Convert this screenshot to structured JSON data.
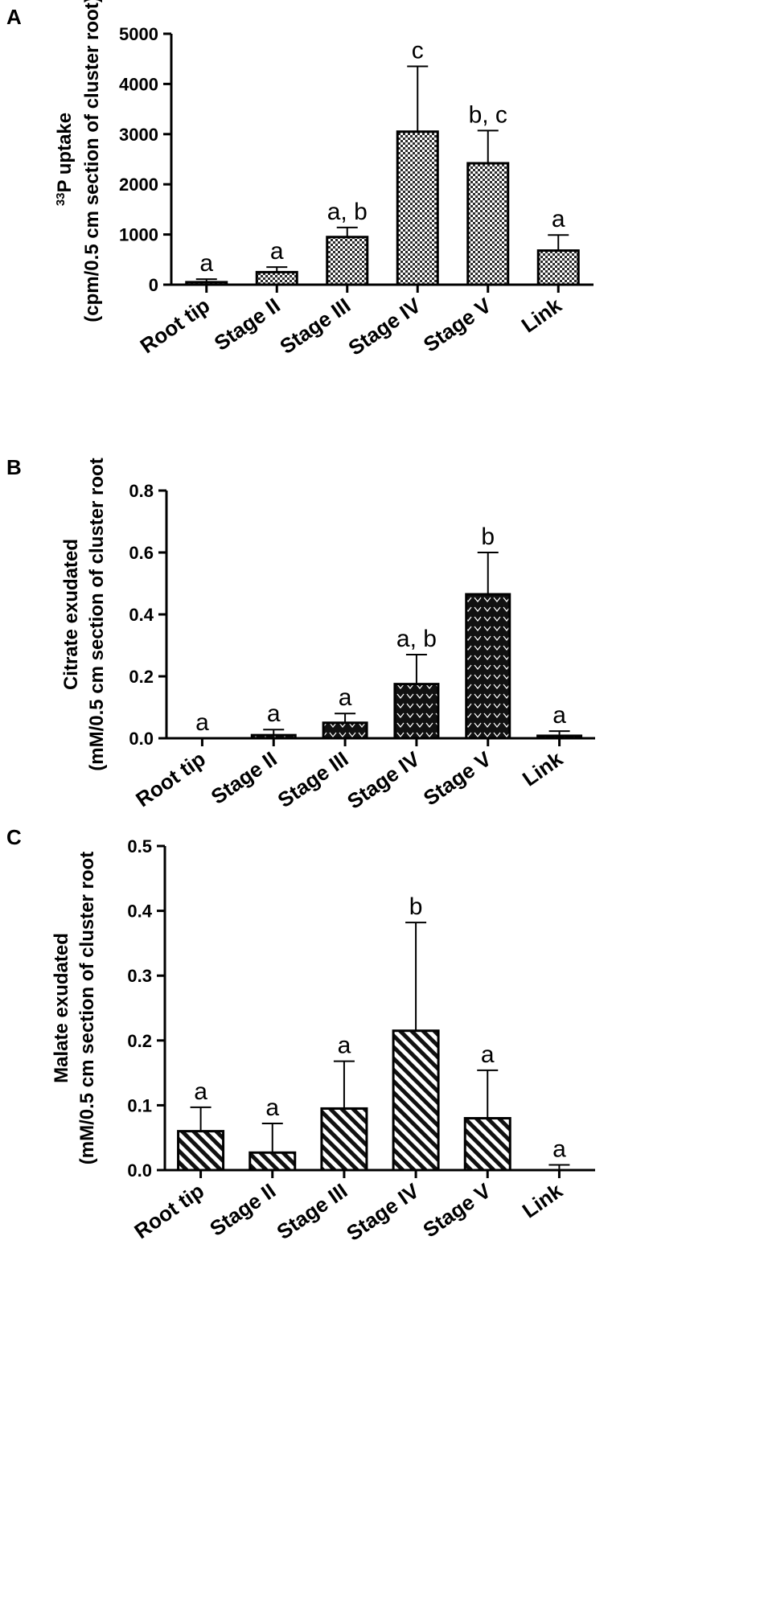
{
  "chart_data": [
    {
      "panel": "A",
      "type": "bar",
      "ylabel_super": "33",
      "ylabel_line1": "P uptake",
      "ylabel_line2": "(cpm/0.5 cm section of cluster root)",
      "ylim": [
        0,
        5000
      ],
      "yticks": [
        "0",
        "1000",
        "2000",
        "3000",
        "4000",
        "5000"
      ],
      "categories": [
        "Root tip",
        "Stage II",
        "Stage III",
        "Stage IV",
        "Stage V",
        "Link"
      ],
      "values": [
        50,
        250,
        950,
        3050,
        2420,
        680
      ],
      "errors": [
        60,
        100,
        190,
        1300,
        650,
        310
      ],
      "letters": [
        "a",
        "a",
        "a, b",
        "c",
        "b, c",
        "a"
      ],
      "pattern": "checker"
    },
    {
      "panel": "B",
      "type": "bar",
      "ylabel_line1": "Citrate exudated",
      "ylabel_line2": "(mM/0.5 cm section of cluster root",
      "ylim": [
        0,
        0.8
      ],
      "yticks": [
        "0.0",
        "0.2",
        "0.4",
        "0.6",
        "0.8"
      ],
      "categories": [
        "Root tip",
        "Stage II",
        "Stage III",
        "Stage IV",
        "Stage V",
        "Link"
      ],
      "values": [
        0.0,
        0.01,
        0.05,
        0.175,
        0.465,
        0.008
      ],
      "errors": [
        0.0,
        0.018,
        0.03,
        0.095,
        0.135,
        0.015
      ],
      "letters": [
        "a",
        "a",
        "a",
        "a, b",
        "b",
        "a"
      ],
      "pattern": "chevron"
    },
    {
      "panel": "C",
      "type": "bar",
      "ylabel_line1": "Malate exudated",
      "ylabel_line2": "(mM/0.5 cm section of cluster root",
      "ylim": [
        0,
        0.5
      ],
      "yticks": [
        "0.0",
        "0.1",
        "0.2",
        "0.3",
        "0.4",
        "0.5"
      ],
      "categories": [
        "Root tip",
        "Stage II",
        "Stage III",
        "Stage IV",
        "Stage V",
        "Link"
      ],
      "values": [
        0.06,
        0.027,
        0.095,
        0.215,
        0.08,
        0.0
      ],
      "errors": [
        0.037,
        0.045,
        0.073,
        0.167,
        0.074,
        0.008
      ],
      "letters": [
        "a",
        "a",
        "a",
        "b",
        "a",
        "a"
      ],
      "pattern": "diagonal"
    }
  ]
}
